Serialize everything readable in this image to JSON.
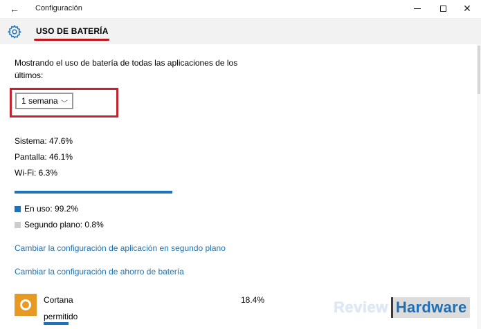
{
  "window": {
    "title": "Configuración",
    "back_glyph": "←",
    "minimize_glyph": "—",
    "maximize_glyph": "☐",
    "close_glyph": "✕"
  },
  "header": {
    "title": "USO DE BATERÍA",
    "icon": "gear-icon"
  },
  "main": {
    "description": "Mostrando el uso de batería de todas las aplicaciones de los últimos:",
    "period_select": {
      "value": "1 semana",
      "chevron": "﹀"
    },
    "breakdown": [
      {
        "label": "Sistema: 47.6%"
      },
      {
        "label": "Pantalla: 46.1%"
      },
      {
        "label": "Wi-Fi: 6.3%"
      }
    ],
    "usage_bar_fraction": 0.992,
    "legend": [
      {
        "label": "En uso: 99.2%",
        "color": "#1d72b8"
      },
      {
        "label": "Segundo plano: 0.8%",
        "color": "#cccccc"
      }
    ],
    "links": [
      {
        "label": "Cambiar la configuración de aplicación en segundo plano"
      },
      {
        "label": "Cambiar la configuración de ahorro de batería"
      }
    ],
    "apps": [
      {
        "name": "Cortana",
        "percent": "18.4%",
        "status": "permitido",
        "icon_color": "#e69a24"
      }
    ]
  },
  "watermark": {
    "part1": "Review",
    "part2": "Hardware"
  },
  "colors": {
    "accent": "#1d72b8",
    "link": "#1c72b5",
    "annotation_red": "#c2242f"
  }
}
